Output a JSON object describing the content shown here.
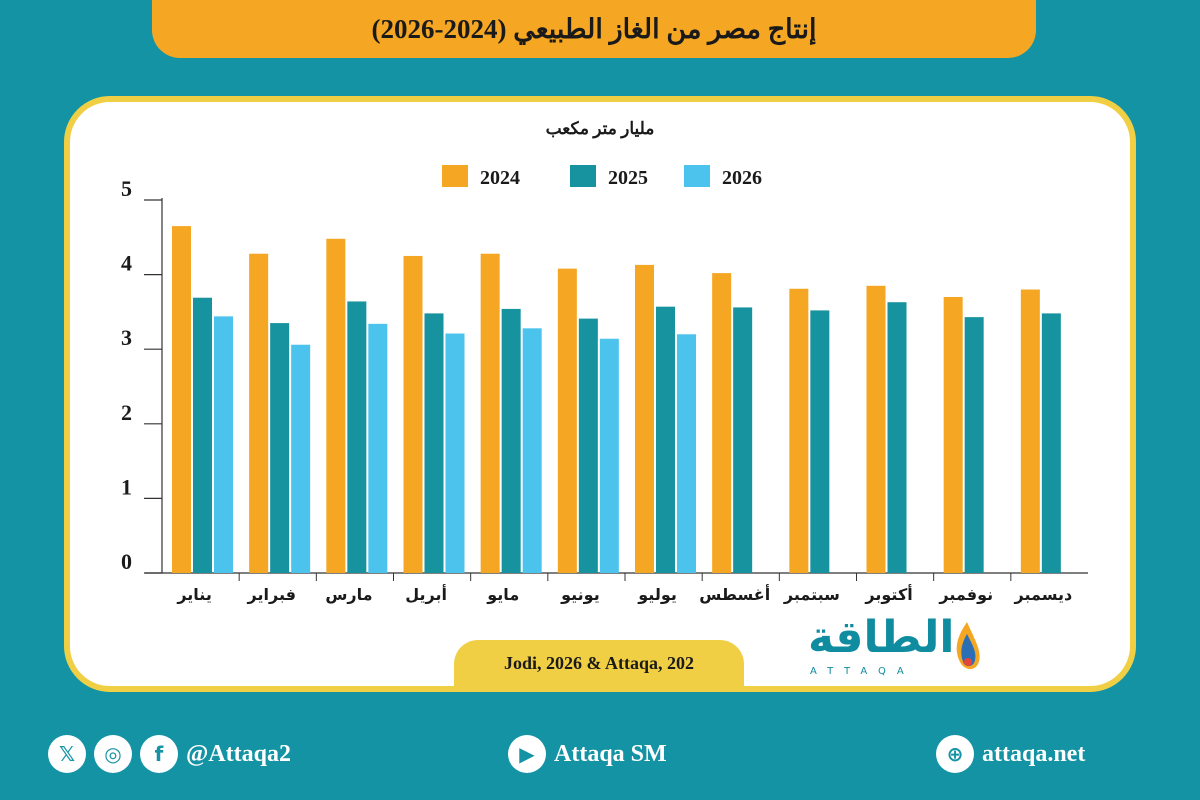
{
  "header": {
    "title": "إنتاج مصر من الغاز الطبيعي (2024-2026)"
  },
  "footer": {
    "source": "Jodi, 2026 & Attaqa, 202"
  },
  "brand": {
    "logo_ar": "الطاقة",
    "logo_en": "ATTAQA"
  },
  "social": {
    "handle": "@Attaqa2",
    "youtube": "Attaqa SM",
    "website": "attaqa.net"
  },
  "colors": {
    "background": "#1493a4",
    "accent_2024": "#f5a623",
    "accent_2025": "#17929f",
    "accent_2026": "#4cc3ec",
    "frame": "#f0cf45"
  },
  "chart_data": {
    "type": "bar",
    "title": "مليار متر مكعب",
    "categories": [
      "يناير",
      "فبراير",
      "مارس",
      "أبريل",
      "مايو",
      "يونيو",
      "يوليو",
      "أغسطس",
      "سبتمبر",
      "أكتوبر",
      "نوفمبر",
      "ديسمبر"
    ],
    "series": [
      {
        "name": "2024",
        "color": "#f5a623",
        "values": [
          4.65,
          4.28,
          4.48,
          4.25,
          4.28,
          4.08,
          4.13,
          4.02,
          3.81,
          3.85,
          3.7,
          3.8
        ]
      },
      {
        "name": "2025",
        "color": "#17929f",
        "values": [
          3.69,
          3.35,
          3.64,
          3.48,
          3.54,
          3.41,
          3.57,
          3.56,
          3.52,
          3.63,
          3.43,
          3.48
        ]
      },
      {
        "name": "2026",
        "color": "#4cc3ec",
        "values": [
          3.44,
          3.06,
          3.34,
          3.21,
          3.28,
          3.14,
          3.2,
          null,
          null,
          null,
          null,
          null
        ]
      }
    ],
    "ylim": [
      0,
      5
    ],
    "yticks": [
      0,
      1,
      2,
      3,
      4,
      5
    ],
    "legend": "top-center",
    "grid": false
  }
}
